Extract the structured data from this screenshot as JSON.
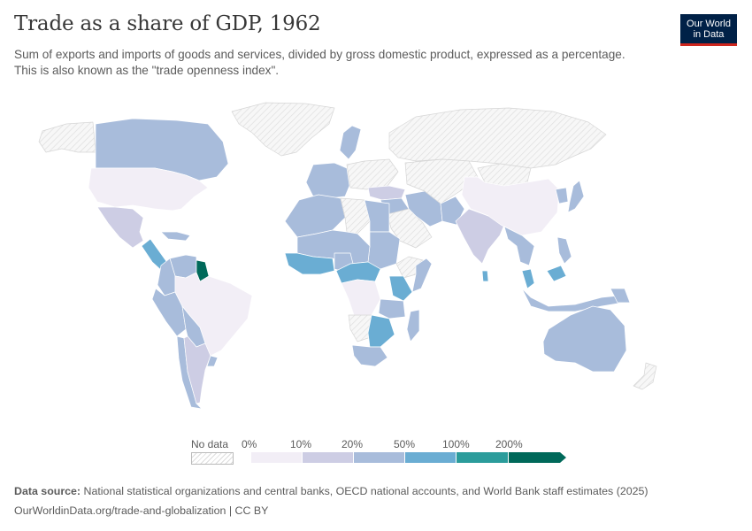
{
  "header": {
    "title": "Trade as a share of GDP, 1962",
    "subtitle": "Sum of exports and imports of goods and services, divided by gross domestic product, expressed as a percentage. This is also known as the \"trade openness index\"."
  },
  "logo": {
    "line1": "Our World",
    "line2": "in Data"
  },
  "colors": {
    "no_data": "#f4f4f4",
    "bin_0_10": "#f2eef6",
    "bin_10_20": "#cdcde4",
    "bin_20_50": "#a8bcdb",
    "bin_50_100": "#6aadd3",
    "bin_100_200": "#2b9c9b",
    "bin_200_plus": "#00695a",
    "ocean": "#ffffff",
    "border": "#ffffff"
  },
  "legend": {
    "no_data_label": "No data",
    "ticks": [
      "0%",
      "10%",
      "20%",
      "50%",
      "100%",
      "200%"
    ]
  },
  "regions": [
    {
      "name": "Greenland",
      "bin": "no_data"
    },
    {
      "name": "Russia",
      "bin": "no_data"
    },
    {
      "name": "Canada",
      "bin": "bin_20_50"
    },
    {
      "name": "Alaska",
      "bin": "no_data"
    },
    {
      "name": "United States",
      "bin": "bin_0_10"
    },
    {
      "name": "Mexico",
      "bin": "bin_10_20"
    },
    {
      "name": "Central America",
      "bin": "bin_50_100"
    },
    {
      "name": "Caribbean",
      "bin": "bin_20_50"
    },
    {
      "name": "Guyana",
      "bin": "bin_200_plus"
    },
    {
      "name": "Venezuela",
      "bin": "bin_20_50"
    },
    {
      "name": "Colombia",
      "bin": "bin_20_50"
    },
    {
      "name": "Ecuador-Peru",
      "bin": "bin_20_50"
    },
    {
      "name": "Brazil",
      "bin": "bin_0_10"
    },
    {
      "name": "Bolivia-Paraguay",
      "bin": "bin_20_50"
    },
    {
      "name": "Chile",
      "bin": "bin_20_50"
    },
    {
      "name": "Argentina",
      "bin": "bin_10_20"
    },
    {
      "name": "Uruguay",
      "bin": "bin_20_50"
    },
    {
      "name": "Scandinavia",
      "bin": "bin_20_50"
    },
    {
      "name": "Western Europe",
      "bin": "bin_20_50"
    },
    {
      "name": "Eastern Europe",
      "bin": "no_data"
    },
    {
      "name": "Turkey",
      "bin": "bin_10_20"
    },
    {
      "name": "Middle East",
      "bin": "bin_20_50"
    },
    {
      "name": "Arabian Peninsula",
      "bin": "no_data"
    },
    {
      "name": "Iran",
      "bin": "bin_20_50"
    },
    {
      "name": "Central Asia",
      "bin": "no_data"
    },
    {
      "name": "Pakistan",
      "bin": "bin_20_50"
    },
    {
      "name": "India",
      "bin": "bin_10_20"
    },
    {
      "name": "China",
      "bin": "bin_0_10"
    },
    {
      "name": "Mongolia",
      "bin": "no_data"
    },
    {
      "name": "Japan",
      "bin": "bin_20_50"
    },
    {
      "name": "Korea",
      "bin": "bin_20_50"
    },
    {
      "name": "Thailand-Myanmar",
      "bin": "bin_20_50"
    },
    {
      "name": "Malaysia",
      "bin": "bin_50_100"
    },
    {
      "name": "Indonesia",
      "bin": "bin_20_50"
    },
    {
      "name": "Philippines",
      "bin": "bin_20_50"
    },
    {
      "name": "Papua New Guinea",
      "bin": "bin_20_50"
    },
    {
      "name": "Sri Lanka",
      "bin": "bin_50_100"
    },
    {
      "name": "Australia",
      "bin": "bin_20_50"
    },
    {
      "name": "New Zealand",
      "bin": "no_data"
    },
    {
      "name": "North Africa West",
      "bin": "bin_20_50"
    },
    {
      "name": "Libya",
      "bin": "no_data"
    },
    {
      "name": "Egypt",
      "bin": "bin_20_50"
    },
    {
      "name": "Sudan",
      "bin": "bin_20_50"
    },
    {
      "name": "Sahel",
      "bin": "bin_20_50"
    },
    {
      "name": "West Africa Coast",
      "bin": "bin_50_100"
    },
    {
      "name": "Nigeria",
      "bin": "bin_20_50"
    },
    {
      "name": "Central Africa",
      "bin": "bin_50_100"
    },
    {
      "name": "Congo",
      "bin": "bin_0_10"
    },
    {
      "name": "Ethiopia",
      "bin": "no_data"
    },
    {
      "name": "Somalia",
      "bin": "bin_20_50"
    },
    {
      "name": "Kenya",
      "bin": "bin_50_100"
    },
    {
      "name": "Tanzania",
      "bin": "bin_20_50"
    },
    {
      "name": "Angola",
      "bin": "no_data"
    },
    {
      "name": "Zambia-Zimbabwe",
      "bin": "bin_50_100"
    },
    {
      "name": "South Africa",
      "bin": "bin_20_50"
    },
    {
      "name": "Madagascar",
      "bin": "bin_20_50"
    }
  ],
  "footer": {
    "source_label": "Data source:",
    "source_text": "National statistical organizations and central banks, OECD national accounts, and World Bank staff estimates (2025)",
    "url_text": "OurWorldinData.org/trade-and-globalization | CC BY"
  }
}
